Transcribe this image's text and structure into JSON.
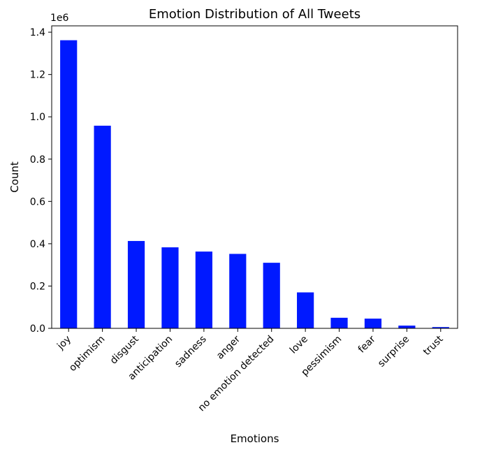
{
  "chart_data": {
    "type": "bar",
    "title": "Emotion Distribution of All Tweets",
    "xlabel": "Emotions",
    "ylabel": "Count",
    "y_offset_label": "1e6",
    "y_multiplier": 1000000,
    "categories": [
      "joy",
      "optimism",
      "disgust",
      "anticipation",
      "sadness",
      "anger",
      "no emotion detected",
      "love",
      "pessimism",
      "fear",
      "surprise",
      "trust"
    ],
    "values": [
      1362000,
      958000,
      413000,
      383000,
      363000,
      352000,
      310000,
      170000,
      50000,
      46000,
      13000,
      6000
    ],
    "ylim": [
      0,
      1430000
    ],
    "yticks": [
      0,
      200000,
      400000,
      600000,
      800000,
      1000000,
      1200000,
      1400000
    ],
    "ytick_labels": [
      "0.0",
      "0.2",
      "0.4",
      "0.6",
      "0.8",
      "1.0",
      "1.2",
      "1.4"
    ],
    "bar_color": "#0019ff",
    "grid": false,
    "legend": false
  }
}
